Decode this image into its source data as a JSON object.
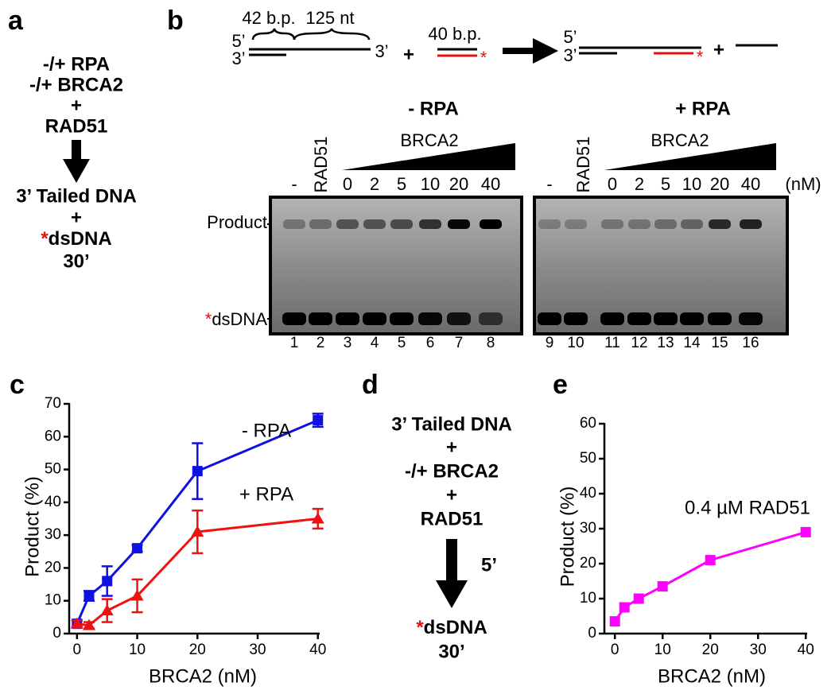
{
  "panel_a": {
    "letter": "a",
    "lines": [
      "-/+ RPA",
      "-/+ BRCA2",
      "+",
      "RAD51"
    ],
    "substrate": "3’ Tailed DNA",
    "plus": "+",
    "star": "*",
    "dsdna": "dsDNA",
    "time": "30’"
  },
  "panel_b": {
    "letter": "b",
    "scheme": {
      "len_a": "42 b.p.",
      "len_b": "125 nt",
      "five": "5’",
      "three": "3’",
      "plus": "+",
      "len_c": "40 b.p.",
      "star": "*"
    },
    "gels": [
      {
        "header": "- RPA",
        "minus": "-",
        "rad51": "RAD51",
        "brca2": "BRCA2",
        "concentrations": [
          0,
          2,
          5,
          10,
          20,
          40
        ],
        "lanes": [
          1,
          2,
          3,
          4,
          5,
          6,
          7,
          8
        ]
      },
      {
        "header": "+ RPA",
        "minus": "-",
        "rad51": "RAD51",
        "brca2": "BRCA2",
        "concentrations": [
          0,
          2,
          5,
          10,
          20,
          40
        ],
        "lanes": [
          9,
          10,
          11,
          12,
          13,
          14,
          15,
          16
        ]
      }
    ],
    "unit": "(nM)",
    "product": "Product",
    "star": "*",
    "dsdna": "dsDNA"
  },
  "panel_d": {
    "letter": "d",
    "lines": [
      "3’ Tailed DNA",
      "+",
      "-/+ BRCA2",
      "+",
      "RAD51"
    ],
    "time_short": "5’",
    "star": "*",
    "dsdna": "dsDNA",
    "time": "30’"
  },
  "chart_data": [
    {
      "type": "line",
      "letter": "c",
      "x_label": "BRCA2 (nM)",
      "y_label": "Product (%)",
      "x": [
        0,
        2,
        5,
        10,
        20,
        40
      ],
      "series": [
        {
          "name": "- RPA",
          "color": "#1010e0",
          "marker": "square",
          "values": [
            3,
            11.5,
            16,
            26,
            49.5,
            65
          ],
          "errors": [
            1,
            1.5,
            4.5,
            1,
            8.5,
            2
          ]
        },
        {
          "name": "+ RPA",
          "color": "#f01010",
          "marker": "triangle",
          "values": [
            3,
            2.5,
            7,
            11.5,
            31,
            35
          ],
          "errors": [
            1,
            1,
            3.5,
            5,
            6.5,
            3
          ]
        }
      ],
      "xlim": [
        -1.3,
        40.3
      ],
      "xticks": [
        0,
        10,
        20,
        30,
        40
      ],
      "ylim": [
        0,
        70
      ],
      "yticks": [
        0,
        10,
        20,
        30,
        40,
        50,
        60,
        70
      ]
    },
    {
      "type": "line",
      "letter": "e",
      "x_label": "BRCA2 (nM)",
      "y_label": "Product (%)",
      "annotation": "0.4 µM RAD51",
      "x": [
        0,
        2,
        5,
        10,
        20,
        40
      ],
      "series": [
        {
          "color": "#ff00ff",
          "marker": "square",
          "values": [
            3.5,
            7.5,
            10,
            13.5,
            21,
            29
          ]
        }
      ],
      "xlim": [
        -2.2,
        40.3
      ],
      "xticks": [
        0,
        10,
        20,
        30,
        40
      ],
      "ylim": [
        0,
        60
      ],
      "yticks": [
        0,
        10,
        20,
        30,
        40,
        50,
        60
      ]
    }
  ]
}
